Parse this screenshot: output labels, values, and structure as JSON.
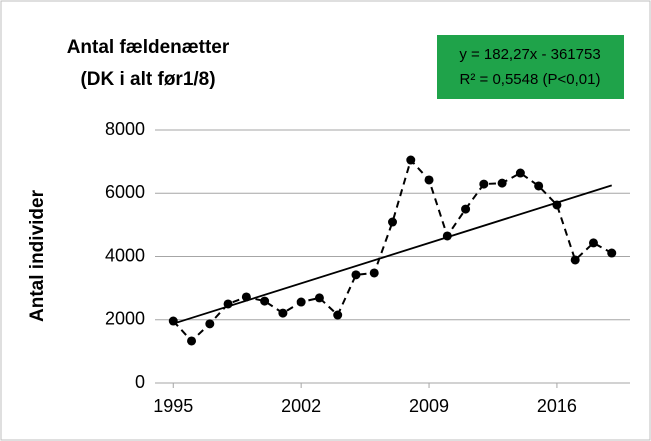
{
  "chart_data": {
    "type": "line",
    "title": [
      "Antal fældenætter",
      "(DK i alt før1/8)"
    ],
    "annotation": [
      "y = 182,27x - 361753",
      "R² = 0,5548 (P<0,01)"
    ],
    "annotation_color": "#1fa34a",
    "y_label": "Antal individer",
    "x": [
      1995,
      1996,
      1997,
      1998,
      1999,
      2000,
      2001,
      2002,
      2003,
      2004,
      2005,
      2006,
      2007,
      2008,
      2009,
      2010,
      2011,
      2012,
      2013,
      2014,
      2015,
      2016,
      2017,
      2018,
      2019
    ],
    "series": [
      {
        "name": "Antal fældenætter",
        "color": "#000000",
        "values": [
          1960,
          1330,
          1870,
          2500,
          2720,
          2590,
          2210,
          2560,
          2690,
          2150,
          3420,
          3480,
          5090,
          7050,
          6420,
          4650,
          5500,
          6290,
          6320,
          6640,
          6230,
          5630,
          3890,
          4430,
          4110
        ]
      }
    ],
    "trendline": {
      "slope": 182.27,
      "intercept": -361753
    },
    "xlim": [
      1994,
      2020
    ],
    "xticks": [
      1995,
      2002,
      2009,
      2016
    ],
    "ylim": [
      0,
      8000
    ],
    "yticks": [
      0,
      2000,
      4000,
      6000,
      8000
    ],
    "grid": true
  }
}
